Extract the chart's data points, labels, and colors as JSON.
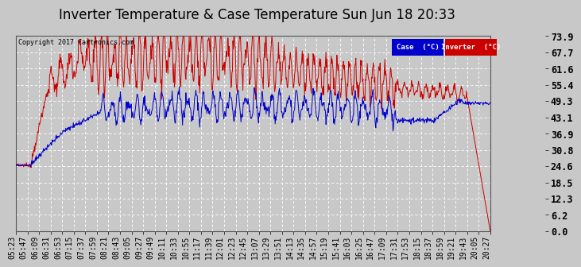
{
  "title": "Inverter Temperature & Case Temperature Sun Jun 18 20:33",
  "copyright": "Copyright 2017 Cartronics.com",
  "legend_labels": [
    "Case  (°C)",
    "Inverter  (°C)"
  ],
  "case_color": "#0000cc",
  "inverter_color": "#cc0000",
  "ylim": [
    0.0,
    73.9
  ],
  "yticks": [
    0.0,
    6.2,
    12.3,
    18.5,
    24.6,
    30.8,
    36.9,
    43.1,
    49.3,
    55.4,
    61.6,
    67.7,
    73.9
  ],
  "plot_bg_color": "#c8c8c8",
  "fig_bg_color": "#c8c8c8",
  "grid_color": "white",
  "title_fontsize": 12,
  "tick_fontsize": 7,
  "num_points": 1000,
  "x_tick_labels": [
    "05:23",
    "05:47",
    "06:09",
    "06:31",
    "06:53",
    "07:15",
    "07:37",
    "07:59",
    "08:21",
    "08:43",
    "09:05",
    "09:27",
    "09:49",
    "10:11",
    "10:33",
    "10:55",
    "11:17",
    "11:39",
    "12:01",
    "12:23",
    "12:45",
    "13:07",
    "13:29",
    "13:51",
    "14:13",
    "14:35",
    "14:57",
    "15:19",
    "15:41",
    "16:03",
    "16:25",
    "16:47",
    "17:09",
    "17:31",
    "17:53",
    "18:15",
    "18:37",
    "18:59",
    "19:21",
    "19:43",
    "20:05",
    "20:27"
  ]
}
